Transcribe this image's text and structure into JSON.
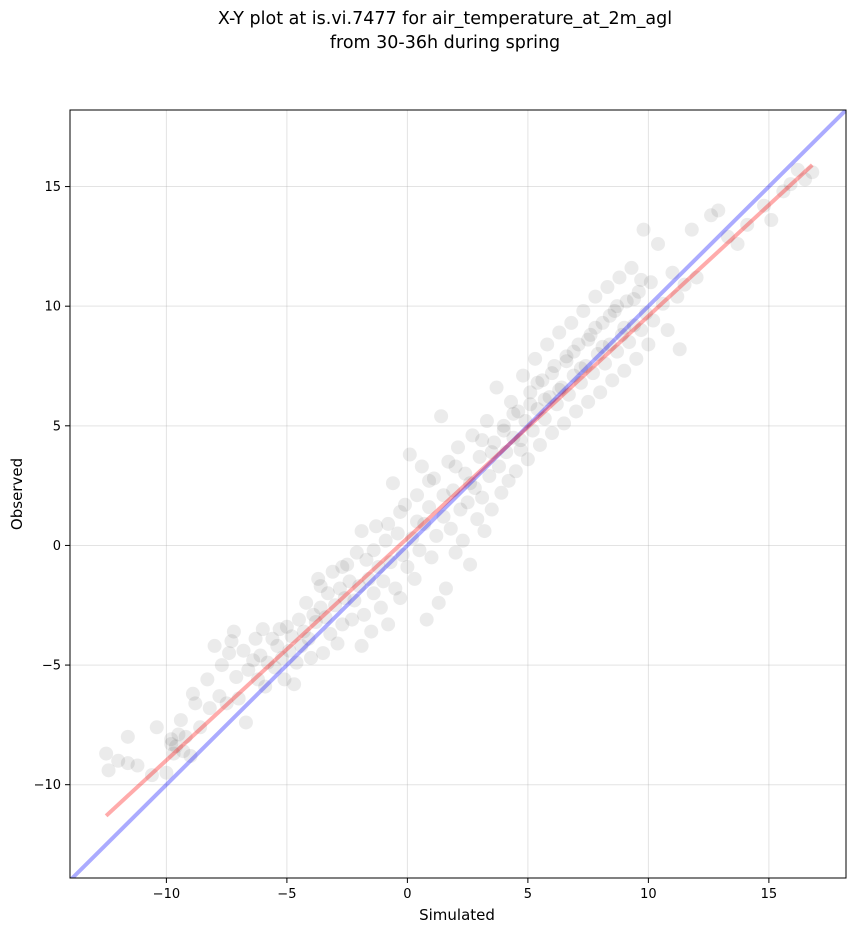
{
  "chart_data": {
    "type": "scatter",
    "title": "X-Y plot at is.vi.7477 for air_temperature_at_2m_agl",
    "subtitle": "from 30-36h during spring",
    "xlabel": "Simulated",
    "ylabel": "Observed",
    "xlim": [
      -14.0,
      18.2
    ],
    "ylim": [
      -13.9,
      18.2
    ],
    "xticks": [
      -10,
      -5,
      0,
      5,
      10,
      15
    ],
    "yticks": [
      -10,
      -5,
      0,
      5,
      10,
      15
    ],
    "xtick_labels": [
      "−10",
      "−5",
      "0",
      "5",
      "10",
      "15"
    ],
    "ytick_labels": [
      "−10",
      "−5",
      "0",
      "5",
      "10",
      "15"
    ],
    "grid": true,
    "lines": [
      {
        "kind": "one-to-one",
        "color": "#0000ff",
        "opacity": 0.33,
        "x": [
          -14.0,
          18.2
        ],
        "y": [
          -14.0,
          18.2
        ]
      },
      {
        "kind": "regression",
        "color": "#ff0000",
        "opacity": 0.33,
        "x": [
          -12.5,
          16.8
        ],
        "y": [
          -11.3,
          15.9
        ]
      }
    ],
    "points_color": "#000000",
    "points_opacity": 0.08,
    "points": [
      [
        -12.5,
        -8.7
      ],
      [
        -12.4,
        -9.4
      ],
      [
        -12.0,
        -9.0
      ],
      [
        -11.6,
        -9.1
      ],
      [
        -11.6,
        -8.0
      ],
      [
        -11.2,
        -9.2
      ],
      [
        -10.6,
        -9.6
      ],
      [
        -10.4,
        -7.6
      ],
      [
        -10.0,
        -9.5
      ],
      [
        -9.8,
        -8.3
      ],
      [
        -9.8,
        -8.1
      ],
      [
        -9.7,
        -8.7
      ],
      [
        -9.6,
        -8.4
      ],
      [
        -9.5,
        -7.9
      ],
      [
        -9.4,
        -7.3
      ],
      [
        -9.3,
        -8.6
      ],
      [
        -9.2,
        -8.0
      ],
      [
        -9.0,
        -8.8
      ],
      [
        -8.9,
        -6.2
      ],
      [
        -8.8,
        -6.6
      ],
      [
        -8.6,
        -7.6
      ],
      [
        -8.3,
        -5.6
      ],
      [
        -8.2,
        -6.8
      ],
      [
        -8.0,
        -4.2
      ],
      [
        -7.8,
        -6.3
      ],
      [
        -7.7,
        -5.0
      ],
      [
        -7.5,
        -6.6
      ],
      [
        -7.4,
        -4.5
      ],
      [
        -7.3,
        -4.0
      ],
      [
        -7.2,
        -3.6
      ],
      [
        -7.1,
        -5.5
      ],
      [
        -7.0,
        -6.4
      ],
      [
        -6.8,
        -4.4
      ],
      [
        -6.7,
        -7.4
      ],
      [
        -6.6,
        -5.2
      ],
      [
        -6.4,
        -4.8
      ],
      [
        -6.3,
        -3.9
      ],
      [
        -6.2,
        -5.6
      ],
      [
        -6.1,
        -4.6
      ],
      [
        -6.0,
        -3.5
      ],
      [
        -5.9,
        -5.9
      ],
      [
        -5.8,
        -4.9
      ],
      [
        -5.6,
        -3.9
      ],
      [
        -5.5,
        -5.1
      ],
      [
        -5.4,
        -4.2
      ],
      [
        -5.3,
        -3.5
      ],
      [
        -5.2,
        -4.7
      ],
      [
        -5.1,
        -5.6
      ],
      [
        -5.0,
        -3.4
      ],
      [
        -4.9,
        -4.4
      ],
      [
        -4.8,
        -3.8
      ],
      [
        -4.7,
        -5.8
      ],
      [
        -4.6,
        -4.9
      ],
      [
        -4.5,
        -3.1
      ],
      [
        -4.4,
        -4.2
      ],
      [
        -4.3,
        -3.6
      ],
      [
        -4.2,
        -2.4
      ],
      [
        -4.1,
        -3.9
      ],
      [
        -4.0,
        -4.7
      ],
      [
        -3.9,
        -2.9
      ],
      [
        -3.8,
        -3.2
      ],
      [
        -3.7,
        -1.4
      ],
      [
        -3.6,
        -2.6
      ],
      [
        -3.5,
        -4.5
      ],
      [
        -3.4,
        -3.0
      ],
      [
        -3.3,
        -2.0
      ],
      [
        -3.2,
        -3.7
      ],
      [
        -3.1,
        -1.1
      ],
      [
        -3.0,
        -2.5
      ],
      [
        -2.9,
        -4.1
      ],
      [
        -2.8,
        -1.8
      ],
      [
        -2.7,
        -3.3
      ],
      [
        -2.6,
        -2.2
      ],
      [
        -2.5,
        -0.8
      ],
      [
        -2.4,
        -1.5
      ],
      [
        -2.3,
        -3.1
      ],
      [
        -2.2,
        -2.3
      ],
      [
        -2.1,
        -0.3
      ],
      [
        -2.0,
        -1.7
      ],
      [
        -1.9,
        -4.2
      ],
      [
        -1.8,
        -2.9
      ],
      [
        -1.7,
        -0.6
      ],
      [
        -1.6,
        -1.4
      ],
      [
        -1.5,
        -3.6
      ],
      [
        -1.4,
        -2.0
      ],
      [
        -1.3,
        0.8
      ],
      [
        -1.2,
        -0.9
      ],
      [
        -1.1,
        -2.6
      ],
      [
        -1.0,
        -1.5
      ],
      [
        -0.9,
        0.2
      ],
      [
        -0.8,
        -3.3
      ],
      [
        -0.7,
        -0.7
      ],
      [
        -0.6,
        2.6
      ],
      [
        -0.5,
        -1.8
      ],
      [
        -0.4,
        0.5
      ],
      [
        -0.3,
        -2.2
      ],
      [
        -0.2,
        -0.4
      ],
      [
        -0.1,
        1.7
      ],
      [
        0.0,
        -0.9
      ],
      [
        0.1,
        3.8
      ],
      [
        0.2,
        0.3
      ],
      [
        0.3,
        -1.4
      ],
      [
        0.4,
        2.1
      ],
      [
        0.5,
        -0.2
      ],
      [
        0.6,
        3.3
      ],
      [
        0.7,
        0.9
      ],
      [
        0.8,
        -3.1
      ],
      [
        0.9,
        1.6
      ],
      [
        1.0,
        -0.5
      ],
      [
        1.1,
        2.8
      ],
      [
        1.2,
        0.4
      ],
      [
        1.3,
        -2.4
      ],
      [
        1.4,
        5.4
      ],
      [
        1.5,
        1.2
      ],
      [
        1.6,
        -1.8
      ],
      [
        1.7,
        3.5
      ],
      [
        1.8,
        0.7
      ],
      [
        1.9,
        2.3
      ],
      [
        2.0,
        -0.3
      ],
      [
        2.1,
        4.1
      ],
      [
        2.2,
        1.5
      ],
      [
        2.3,
        0.2
      ],
      [
        2.4,
        3.0
      ],
      [
        2.5,
        1.8
      ],
      [
        2.6,
        -0.8
      ],
      [
        2.7,
        4.6
      ],
      [
        2.8,
        2.4
      ],
      [
        2.9,
        1.1
      ],
      [
        3.0,
        3.7
      ],
      [
        3.1,
        2.0
      ],
      [
        3.2,
        0.6
      ],
      [
        3.3,
        5.2
      ],
      [
        3.4,
        2.9
      ],
      [
        3.5,
        1.5
      ],
      [
        3.6,
        4.3
      ],
      [
        3.7,
        6.6
      ],
      [
        3.8,
        3.3
      ],
      [
        3.9,
        2.2
      ],
      [
        4.0,
        5.0
      ],
      [
        4.1,
        3.9
      ],
      [
        4.2,
        2.7
      ],
      [
        4.3,
        6.0
      ],
      [
        4.4,
        4.5
      ],
      [
        4.5,
        3.1
      ],
      [
        4.6,
        5.6
      ],
      [
        4.7,
        4.0
      ],
      [
        4.8,
        7.1
      ],
      [
        4.9,
        5.2
      ],
      [
        5.0,
        3.6
      ],
      [
        5.1,
        6.4
      ],
      [
        5.2,
        4.8
      ],
      [
        5.3,
        7.8
      ],
      [
        5.4,
        5.7
      ],
      [
        5.5,
        4.2
      ],
      [
        5.6,
        6.9
      ],
      [
        5.7,
        5.3
      ],
      [
        5.8,
        8.4
      ],
      [
        5.9,
        6.2
      ],
      [
        6.0,
        4.7
      ],
      [
        6.1,
        7.5
      ],
      [
        6.2,
        5.9
      ],
      [
        6.3,
        8.9
      ],
      [
        6.4,
        6.6
      ],
      [
        6.5,
        5.1
      ],
      [
        6.6,
        7.9
      ],
      [
        6.7,
        6.3
      ],
      [
        6.8,
        9.3
      ],
      [
        6.9,
        7.1
      ],
      [
        7.0,
        5.6
      ],
      [
        7.1,
        8.4
      ],
      [
        7.2,
        6.8
      ],
      [
        7.3,
        9.8
      ],
      [
        7.4,
        7.5
      ],
      [
        7.5,
        6.0
      ],
      [
        7.6,
        8.8
      ],
      [
        7.7,
        7.2
      ],
      [
        7.8,
        10.4
      ],
      [
        7.9,
        8.0
      ],
      [
        8.0,
        6.4
      ],
      [
        8.1,
        9.3
      ],
      [
        8.2,
        7.6
      ],
      [
        8.3,
        10.8
      ],
      [
        8.4,
        8.4
      ],
      [
        8.5,
        6.9
      ],
      [
        8.6,
        9.8
      ],
      [
        8.7,
        8.1
      ],
      [
        8.8,
        11.2
      ],
      [
        8.9,
        8.8
      ],
      [
        9.0,
        7.3
      ],
      [
        9.1,
        10.2
      ],
      [
        9.2,
        8.5
      ],
      [
        9.3,
        11.6
      ],
      [
        9.4,
        9.2
      ],
      [
        9.5,
        7.8
      ],
      [
        9.6,
        10.6
      ],
      [
        9.7,
        9.0
      ],
      [
        9.8,
        13.2
      ],
      [
        9.9,
        9.7
      ],
      [
        10.0,
        8.4
      ],
      [
        10.1,
        11.0
      ],
      [
        10.2,
        9.4
      ],
      [
        10.4,
        12.6
      ],
      [
        10.6,
        10.1
      ],
      [
        10.8,
        9.0
      ],
      [
        11.0,
        11.4
      ],
      [
        11.2,
        10.4
      ],
      [
        11.3,
        8.2
      ],
      [
        11.5,
        10.9
      ],
      [
        11.8,
        13.2
      ],
      [
        12.0,
        11.2
      ],
      [
        12.6,
        13.8
      ],
      [
        12.9,
        14.0
      ],
      [
        13.3,
        12.9
      ],
      [
        13.7,
        12.6
      ],
      [
        14.1,
        13.4
      ],
      [
        14.8,
        14.2
      ],
      [
        15.1,
        13.6
      ],
      [
        15.6,
        14.8
      ],
      [
        15.9,
        15.1
      ],
      [
        16.2,
        15.7
      ],
      [
        16.5,
        15.3
      ],
      [
        16.8,
        15.6
      ],
      [
        -3.6,
        -1.7
      ],
      [
        -2.7,
        -0.9
      ],
      [
        -1.9,
        0.6
      ],
      [
        -1.4,
        -0.2
      ],
      [
        -0.8,
        0.9
      ],
      [
        -0.3,
        1.4
      ],
      [
        0.4,
        1.0
      ],
      [
        0.9,
        2.7
      ],
      [
        1.5,
        2.1
      ],
      [
        2.0,
        3.3
      ],
      [
        2.6,
        2.6
      ],
      [
        3.1,
        4.4
      ],
      [
        3.5,
        3.9
      ],
      [
        4.0,
        4.8
      ],
      [
        4.4,
        5.5
      ],
      [
        4.7,
        4.4
      ],
      [
        5.1,
        5.9
      ],
      [
        5.4,
        6.8
      ],
      [
        5.7,
        6.1
      ],
      [
        6.0,
        7.2
      ],
      [
        6.3,
        6.5
      ],
      [
        6.6,
        7.7
      ],
      [
        6.9,
        8.1
      ],
      [
        7.2,
        7.4
      ],
      [
        7.5,
        8.6
      ],
      [
        7.8,
        9.1
      ],
      [
        8.1,
        8.3
      ],
      [
        8.4,
        9.6
      ],
      [
        8.7,
        10.0
      ],
      [
        9.0,
        9.1
      ],
      [
        9.4,
        10.3
      ],
      [
        9.7,
        11.1
      ]
    ]
  }
}
